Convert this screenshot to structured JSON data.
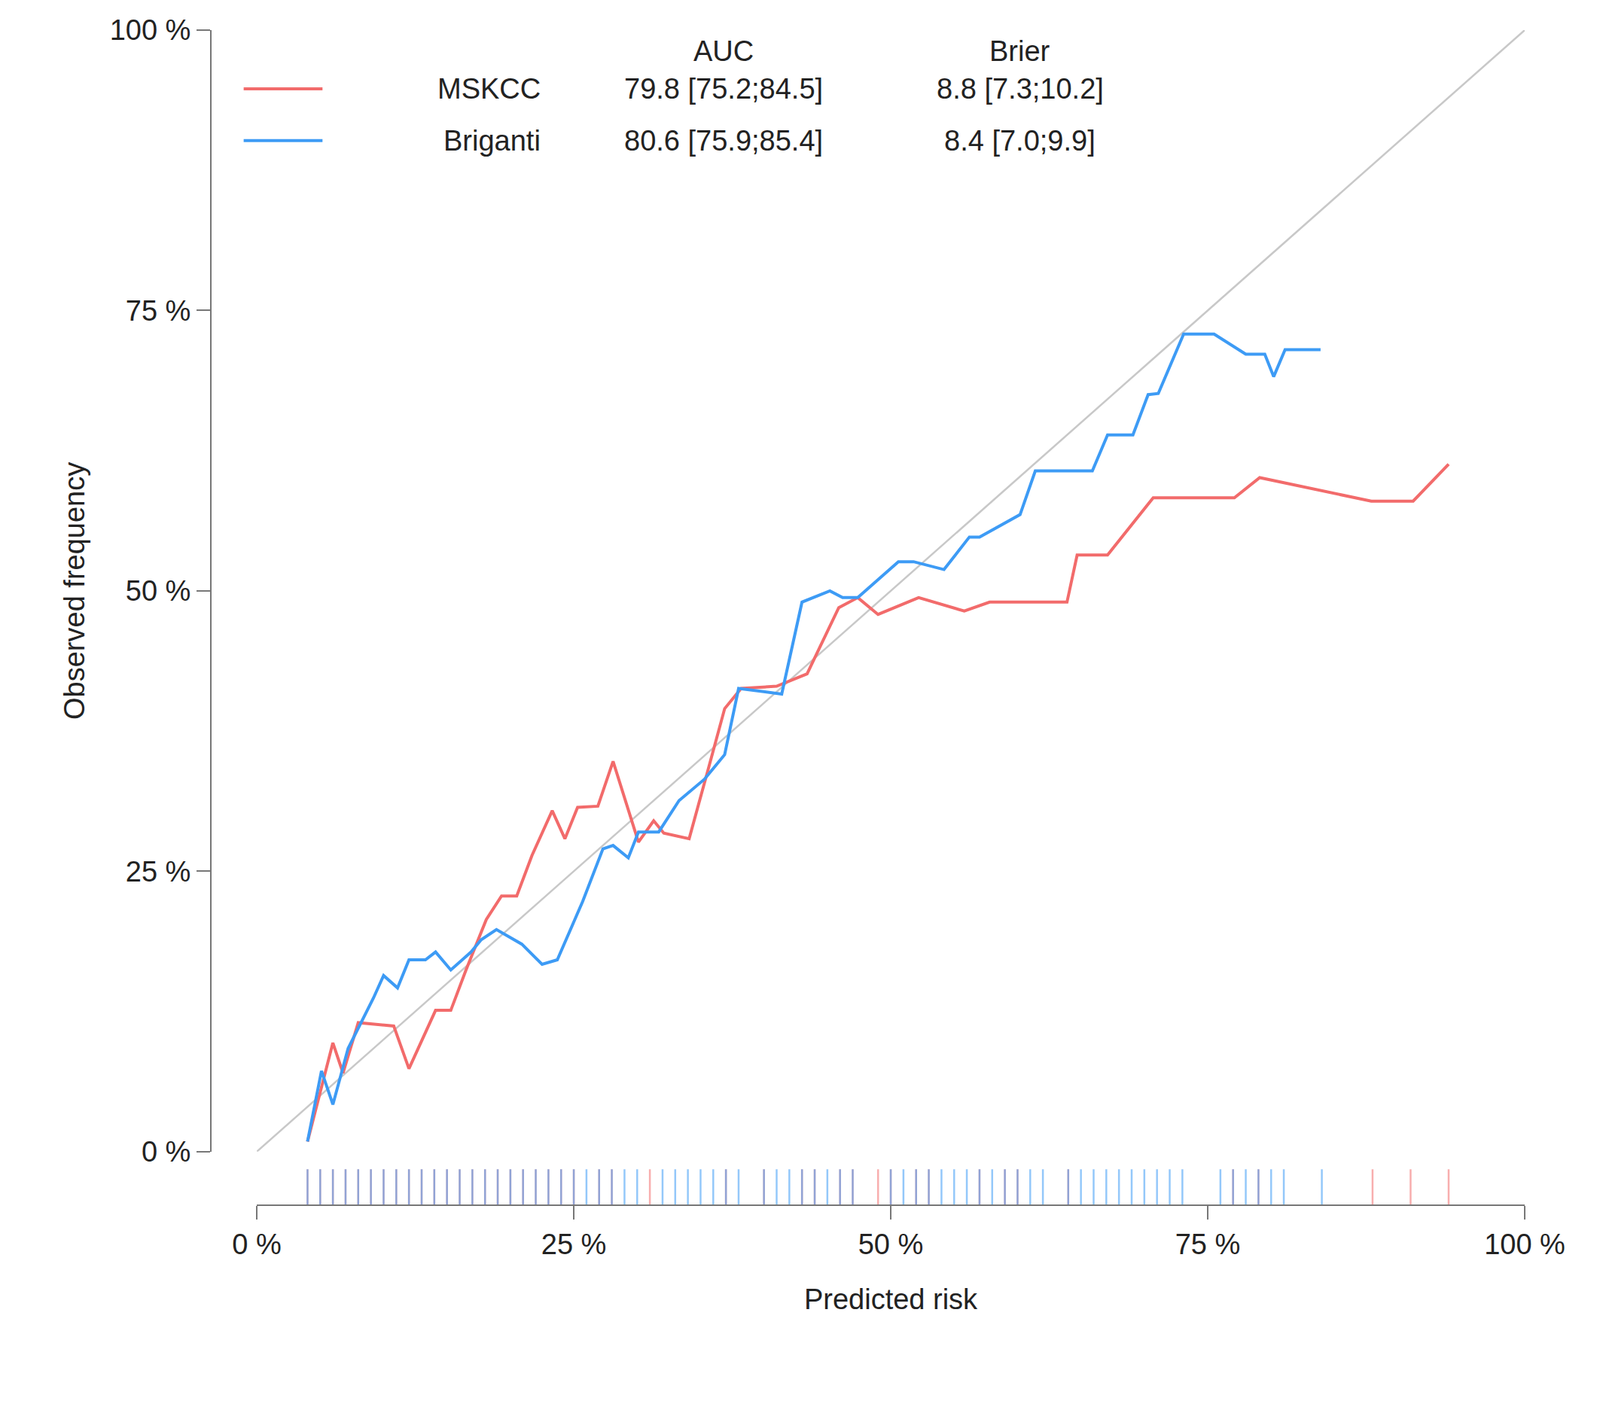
{
  "chart_data": {
    "type": "line",
    "x_label": "Predicted risk",
    "y_label": "Observed frequency",
    "xlim": [
      0,
      100
    ],
    "ylim": [
      0,
      100
    ],
    "xticks": [
      {
        "value": 0,
        "label": "0 %"
      },
      {
        "value": 25,
        "label": "25 %"
      },
      {
        "value": 50,
        "label": "50 %"
      },
      {
        "value": 75,
        "label": "75 %"
      },
      {
        "value": 100,
        "label": "100 %"
      }
    ],
    "yticks": [
      {
        "value": 0,
        "label": "0 %"
      },
      {
        "value": 25,
        "label": "25 %"
      },
      {
        "value": 50,
        "label": "50 %"
      },
      {
        "value": 75,
        "label": "75 %"
      },
      {
        "value": 100,
        "label": "100 %"
      }
    ],
    "grid": false,
    "legend_columns": [
      "AUC",
      "Brier"
    ],
    "reference": {
      "x": [
        0,
        100
      ],
      "values": [
        0,
        100
      ],
      "color": "#c8c8c8"
    },
    "series": [
      {
        "name": "MSKCC",
        "color": "#f26b6b",
        "auc": "79.8 [75.2;84.5]",
        "brier": "8.8 [7.3;10.2]",
        "x": [
          4.0,
          6.0,
          6.8,
          8.0,
          10.8,
          12.0,
          14.1,
          15.3,
          16.5,
          18.1,
          19.3,
          20.5,
          21.7,
          23.3,
          24.3,
          25.3,
          26.9,
          28.1,
          30.1,
          31.3,
          32.1,
          34.1,
          35.7,
          36.9,
          38.2,
          41.0,
          43.4,
          45.9,
          47.4,
          49.0,
          52.2,
          55.8,
          57.8,
          63.9,
          64.7,
          67.1,
          70.7,
          77.1,
          79.1,
          87.9,
          91.2,
          94.0
        ],
        "values": [
          0.9,
          9.7,
          7.0,
          11.5,
          11.2,
          7.4,
          12.6,
          12.6,
          16.2,
          20.7,
          22.8,
          22.8,
          26.4,
          30.4,
          27.9,
          30.7,
          30.8,
          34.8,
          27.6,
          29.5,
          28.4,
          27.9,
          34.5,
          39.5,
          41.3,
          41.5,
          42.6,
          48.5,
          49.4,
          47.9,
          49.4,
          48.2,
          49.0,
          49.0,
          53.2,
          53.2,
          58.3,
          58.3,
          60.1,
          58.0,
          58.0,
          61.3
        ],
        "rug": [
          4,
          5,
          6,
          7,
          8,
          9,
          10,
          11,
          12,
          13,
          14,
          15,
          16,
          17,
          18,
          19,
          20,
          21,
          22,
          23,
          24,
          25,
          27,
          28,
          31,
          37,
          40,
          43,
          44,
          46,
          47,
          49,
          50,
          52,
          53,
          57,
          59,
          60,
          64,
          77,
          79,
          88,
          91,
          94
        ]
      },
      {
        "name": "Briganti",
        "color": "#3d9bf5",
        "auc": "80.6 [75.9;85.4]",
        "brier": "8.4 [7.0;9.9]",
        "x": [
          4.0,
          5.1,
          6.0,
          7.2,
          9.2,
          10.0,
          11.1,
          12.0,
          13.3,
          14.1,
          15.3,
          16.9,
          17.7,
          18.9,
          20.9,
          22.5,
          23.7,
          24.9,
          25.7,
          27.3,
          28.1,
          29.3,
          30.1,
          31.7,
          33.3,
          35.3,
          36.9,
          38.0,
          41.4,
          43.0,
          45.2,
          46.2,
          47.4,
          50.6,
          51.8,
          54.2,
          56.2,
          57.0,
          60.2,
          61.4,
          65.9,
          67.1,
          69.1,
          70.3,
          71.1,
          73.1,
          75.5,
          78.0,
          79.5,
          80.2,
          81.1,
          83.9
        ],
        "values": [
          0.9,
          7.2,
          4.2,
          9.2,
          13.7,
          15.7,
          14.6,
          17.1,
          17.1,
          17.8,
          16.2,
          17.8,
          18.9,
          19.8,
          18.5,
          16.7,
          17.1,
          20.3,
          22.3,
          27.0,
          27.3,
          26.2,
          28.5,
          28.5,
          31.3,
          33.2,
          35.4,
          41.3,
          40.8,
          49.0,
          50.0,
          49.4,
          49.4,
          52.6,
          52.6,
          51.9,
          54.8,
          54.8,
          56.8,
          60.7,
          60.7,
          63.9,
          63.9,
          67.5,
          67.6,
          72.9,
          72.9,
          71.1,
          71.1,
          69.1,
          71.5,
          71.5
        ],
        "rug": [
          4,
          5,
          6,
          7,
          8,
          9,
          10,
          11,
          12,
          13,
          14,
          15,
          16,
          17,
          18,
          19,
          20,
          21,
          22,
          23,
          24,
          25,
          26,
          27,
          28,
          29,
          30,
          32,
          33,
          34,
          35,
          36,
          37,
          38,
          40,
          41,
          42,
          43,
          44,
          45,
          46,
          47,
          50,
          51,
          52,
          53,
          54,
          55,
          56,
          57,
          58,
          59,
          60,
          61,
          62,
          64,
          65,
          66,
          67,
          68,
          69,
          70,
          71,
          72,
          73,
          76,
          77,
          78,
          79,
          80,
          81,
          84
        ]
      }
    ]
  }
}
